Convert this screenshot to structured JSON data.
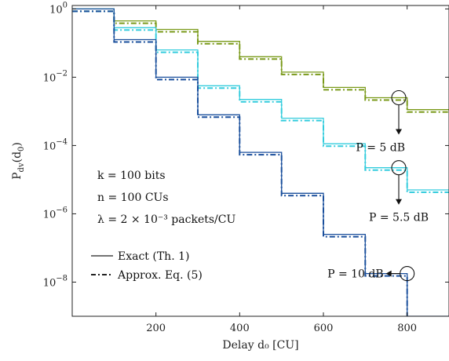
{
  "chart_data": {
    "type": "line",
    "title": "",
    "xlabel": "Delay d₀ [CU]",
    "ylabel": "P_dv(d₀)",
    "xlim": [
      0,
      900
    ],
    "ylim_log10": [
      -9,
      0.1
    ],
    "yscale": "log",
    "x_ticks": [
      {
        "value": 200,
        "label": "200"
      },
      {
        "value": 400,
        "label": "400"
      },
      {
        "value": 600,
        "label": "600"
      },
      {
        "value": 800,
        "label": "800"
      }
    ],
    "y_ticks": [
      {
        "exp": 0,
        "base": "10",
        "sup": "0"
      },
      {
        "exp": -2,
        "base": "10",
        "sup": "−2"
      },
      {
        "exp": -4,
        "base": "10",
        "sup": "−4"
      },
      {
        "exp": -6,
        "base": "10",
        "sup": "−6"
      },
      {
        "exp": -8,
        "base": "10",
        "sup": "−8"
      }
    ],
    "grid": false,
    "series": [
      {
        "color": "#7a9a1a",
        "x": [
          0,
          100,
          200,
          300,
          400,
          500,
          600,
          700,
          800
        ],
        "log10_y": [
          0,
          -0.35,
          -0.6,
          -0.95,
          -1.4,
          -1.85,
          -2.3,
          -2.6,
          -2.95
        ]
      },
      {
        "color": "#33ccdd",
        "x": [
          0,
          100,
          200,
          300,
          400,
          500,
          600,
          700,
          800
        ],
        "log10_y": [
          0,
          -0.55,
          -1.2,
          -2.25,
          -2.65,
          -3.2,
          -3.95,
          -4.65,
          -5.3
        ]
      },
      {
        "color": "#1a4f9c",
        "x": [
          0,
          100,
          200,
          300,
          400,
          500,
          600,
          700,
          800
        ],
        "log10_y": [
          0,
          -0.9,
          -2.0,
          -3.1,
          -4.2,
          -5.4,
          -6.6,
          -7.75,
          -9.0
        ]
      }
    ],
    "annotations": [
      {
        "label": "P = 5 dB",
        "x": 780,
        "log10_y": -2.6
      },
      {
        "label": "P = 5.5 dB",
        "x": 780,
        "log10_y": -4.65
      },
      {
        "label": "P = 10 dB",
        "x": 800,
        "log10_y": -7.75
      }
    ],
    "params": [
      "k = 100 bits",
      "n = 100 CUs",
      "λ = 2 × 10⁻³ packets/CU"
    ],
    "legend": [
      {
        "label": "Exact (Th. 1)",
        "style": "solid"
      },
      {
        "label": "Approx. Eq. (5)",
        "style": "dashdot"
      }
    ]
  }
}
